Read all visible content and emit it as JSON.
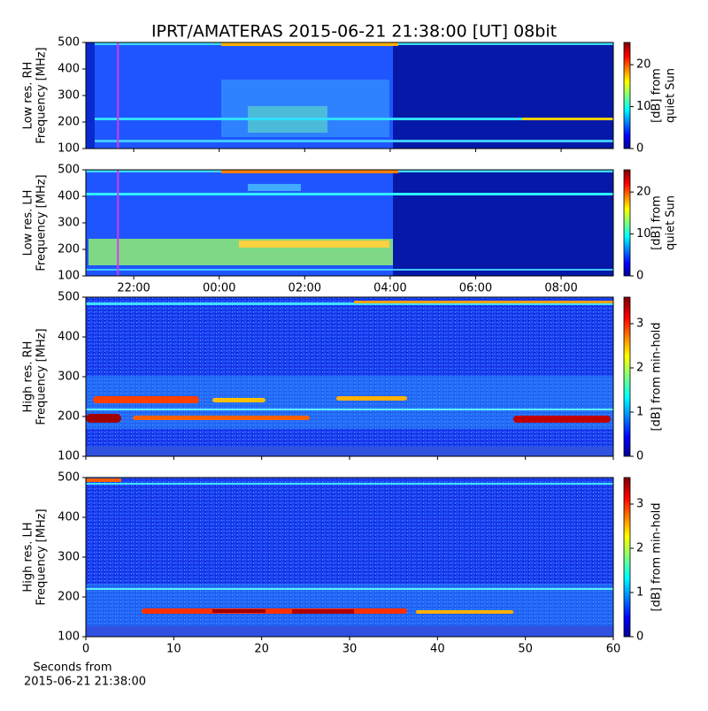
{
  "title": "IPRT/AMATERAS 2015-06-21 21:38:00 [UT]   08bit",
  "chart_data": [
    {
      "type": "spectrogram",
      "ylabel": [
        "Low res. RH",
        "Frequency [MHz]"
      ],
      "ylim": [
        100,
        500
      ],
      "yticks": [
        100,
        200,
        300,
        400,
        500
      ],
      "xlim": [
        20.88,
        33.22
      ],
      "xticks": [
        22,
        24,
        26,
        28,
        30,
        32
      ],
      "tick_labels": false,
      "colorbar_label": [
        "[dB] from",
        "quiet Sun"
      ],
      "clim": [
        0,
        25.3
      ],
      "cticks": [
        0,
        10,
        20
      ],
      "marker_x": 21.63,
      "marker_color": "#d63ae8"
    },
    {
      "type": "spectrogram",
      "ylabel": [
        "Low res. LH",
        "Frequency [MHz]"
      ],
      "ylim": [
        100,
        500
      ],
      "yticks": [
        100,
        200,
        300,
        400,
        500
      ],
      "xlim": [
        20.88,
        33.22
      ],
      "xticks": [
        {
          "value": 22,
          "label": "22:00"
        },
        {
          "value": 24,
          "label": "00:00"
        },
        {
          "value": 26,
          "label": "02:00"
        },
        {
          "value": 28,
          "label": "04:00"
        },
        {
          "value": 30,
          "label": "06:00"
        },
        {
          "value": 32,
          "label": "08:00"
        }
      ],
      "tick_labels": true,
      "colorbar_label": [
        "[dB] from",
        "quiet Sun"
      ],
      "clim": [
        0,
        25.3
      ],
      "cticks": [
        0,
        10,
        20
      ],
      "marker_x": 21.63,
      "marker_color": "#d63ae8"
    },
    {
      "type": "spectrogram",
      "ylabel": [
        "High res. RH",
        "Frequency [MHz]"
      ],
      "ylim": [
        100,
        500
      ],
      "yticks": [
        100,
        200,
        300,
        400,
        500
      ],
      "xlim": [
        0,
        60
      ],
      "xticks": [
        0,
        10,
        20,
        30,
        40,
        50,
        60
      ],
      "tick_labels": false,
      "colorbar_label": [
        "[dB] from min-hold"
      ],
      "clim": [
        0,
        3.6
      ],
      "cticks": [
        0,
        1,
        2,
        3
      ]
    },
    {
      "type": "spectrogram",
      "ylabel": [
        "High res. LH",
        "Frequency [MHz]"
      ],
      "ylim": [
        100,
        500
      ],
      "yticks": [
        100,
        200,
        300,
        400,
        500
      ],
      "xlim": [
        0,
        60
      ],
      "xticks": [
        0,
        10,
        20,
        30,
        40,
        50,
        60
      ],
      "tick_labels": true,
      "xlabel": [
        "Seconds from",
        "2015-06-21 21:38:00"
      ],
      "colorbar_label": [
        "[dB] from min-hold"
      ],
      "clim": [
        0,
        3.6
      ],
      "cticks": [
        0,
        1,
        2,
        3
      ]
    }
  ]
}
